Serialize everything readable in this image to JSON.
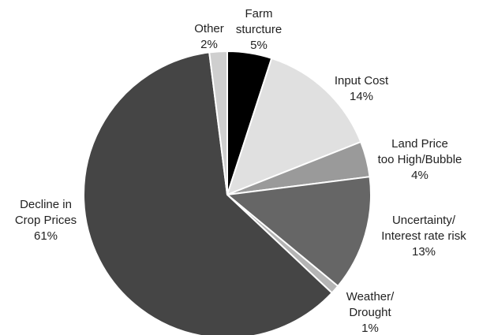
{
  "chart_data": {
    "type": "pie",
    "categories": [
      [
        "Farm",
        "sturcture"
      ],
      [
        "Input Cost"
      ],
      [
        "Land Price",
        "too High/Bubble"
      ],
      [
        "Uncertainty/",
        "Interest rate risk"
      ],
      [
        "Weather/",
        "Drought"
      ],
      [
        "Decline in",
        "Crop Prices"
      ],
      [
        "Other"
      ]
    ],
    "values": [
      5,
      14,
      4,
      13,
      1,
      61,
      2
    ],
    "value_labels": [
      "5%",
      "14%",
      "4%",
      "13%",
      "1%",
      "61%",
      "2%"
    ],
    "colors": [
      "#000000",
      "#e0e0e0",
      "#9a9a9a",
      "#666666",
      "#b4b4b4",
      "#454545",
      "#cfcfcf"
    ]
  }
}
